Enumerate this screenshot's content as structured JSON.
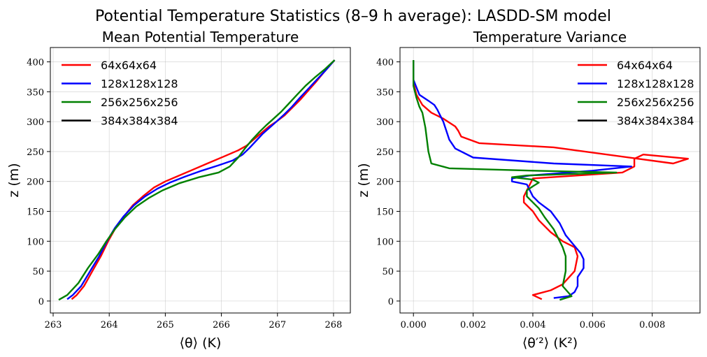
{
  "figure": {
    "suptitle": "Potential Temperature Statistics (8–9 h average): LASDD-SM model"
  },
  "chart_data": [
    {
      "type": "line",
      "title": "Mean Potential Temperature",
      "xlabel": "⟨θ⟩ (K)",
      "ylabel": "z (m)",
      "xlim": [
        262.95,
        268.3
      ],
      "ylim": [
        -20,
        424
      ],
      "xticks": [
        263,
        264,
        265,
        266,
        267,
        268
      ],
      "yticks": [
        0,
        50,
        100,
        150,
        200,
        250,
        300,
        350,
        400
      ],
      "grid": true,
      "legend_position": "upper-left",
      "series": [
        {
          "name": "64x64x64",
          "color": "#ff0000",
          "x": [
            263.33,
            263.42,
            263.55,
            263.7,
            263.85,
            263.98,
            264.1,
            264.25,
            264.42,
            264.6,
            264.8,
            265.0,
            265.2,
            265.45,
            265.75,
            266.05,
            266.3,
            266.45,
            266.55,
            266.65,
            266.75,
            266.85,
            266.98,
            267.12,
            267.25,
            267.4,
            267.55,
            267.7,
            267.85,
            268.02
          ],
          "y": [
            3,
            10,
            25,
            50,
            75,
            100,
            120,
            140,
            160,
            175,
            190,
            200,
            208,
            218,
            230,
            242,
            252,
            260,
            268,
            276,
            284,
            292,
            300,
            310,
            322,
            336,
            352,
            368,
            385,
            403
          ]
        },
        {
          "name": "128x128x128",
          "color": "#0000ff",
          "x": [
            263.25,
            263.35,
            263.5,
            263.66,
            263.82,
            263.96,
            264.1,
            264.26,
            264.44,
            264.64,
            264.86,
            265.08,
            265.35,
            265.65,
            265.95,
            266.2,
            266.38,
            266.5,
            266.62,
            266.74,
            266.86,
            266.98,
            267.12,
            267.26,
            267.4,
            267.55,
            267.7,
            267.85,
            268.02
          ],
          "y": [
            3,
            10,
            25,
            50,
            75,
            100,
            122,
            142,
            160,
            175,
            188,
            198,
            208,
            218,
            227,
            235,
            245,
            256,
            268,
            280,
            290,
            300,
            312,
            325,
            340,
            355,
            370,
            385,
            403
          ]
        },
        {
          "name": "256x256x256",
          "color": "#008000",
          "x": [
            263.1,
            263.25,
            263.45,
            263.62,
            263.8,
            263.95,
            264.1,
            264.28,
            264.48,
            264.7,
            264.95,
            265.25,
            265.6,
            265.95,
            266.15,
            266.3,
            266.42,
            266.55,
            266.68,
            266.8,
            266.92,
            267.06,
            267.2,
            267.35,
            267.5,
            267.68,
            267.85,
            268.02
          ],
          "y": [
            2,
            10,
            30,
            55,
            78,
            100,
            120,
            140,
            158,
            172,
            185,
            197,
            207,
            215,
            225,
            240,
            255,
            270,
            283,
            294,
            304,
            316,
            330,
            345,
            360,
            375,
            388,
            403
          ]
        },
        {
          "name": "384x384x384",
          "color": "#000000",
          "x": [],
          "y": []
        }
      ]
    },
    {
      "type": "line",
      "title": "Temperature Variance",
      "xlabel": "⟨θ′²⟩ (K²)",
      "ylabel": "z (m)",
      "xlim": [
        -0.00045,
        0.0096
      ],
      "ylim": [
        -20,
        424
      ],
      "xticks": [
        0,
        0.002,
        0.004,
        0.006,
        0.008
      ],
      "xtick_labels": [
        "0.000",
        "0.002",
        "0.004",
        "0.006",
        "0.008"
      ],
      "yticks": [
        0,
        50,
        100,
        150,
        200,
        250,
        300,
        350,
        400
      ],
      "grid": true,
      "legend_position": "upper-right",
      "series": [
        {
          "name": "64x64x64",
          "color": "#ff0000",
          "x": [
            0.0043,
            0.004,
            0.0046,
            0.005,
            0.0054,
            0.0055,
            0.0054,
            0.005,
            0.0046,
            0.0042,
            0.004,
            0.0037,
            0.0037,
            0.0038,
            0.0039,
            0.004,
            0.0055,
            0.007,
            0.0074,
            0.0074,
            0.0077,
            0.0092,
            0.0087,
            0.0047,
            0.0022,
            0.0016,
            0.0015,
            0.0014,
            0.001,
            0.0006,
            0.0003,
            0.0001,
            0.0,
            0.0,
            0.0
          ],
          "x_note": "",
          "y": [
            3,
            10,
            18,
            28,
            50,
            75,
            90,
            100,
            115,
            135,
            150,
            165,
            175,
            185,
            195,
            205,
            210,
            215,
            225,
            238,
            245,
            238,
            230,
            257,
            264,
            275,
            285,
            292,
            305,
            315,
            328,
            345,
            365,
            385,
            403
          ]
        },
        {
          "name": "128x128x128",
          "color": "#0000ff",
          "x": [
            0.0047,
            0.0052,
            0.0054,
            0.0055,
            0.0055,
            0.0057,
            0.0057,
            0.0056,
            0.0054,
            0.0051,
            0.0049,
            0.0046,
            0.0042,
            0.004,
            0.0039,
            0.0038,
            0.0033,
            0.0033,
            0.0039,
            0.006,
            0.0073,
            0.0047,
            0.002,
            0.0014,
            0.0012,
            0.0011,
            0.001,
            0.0009,
            0.0008,
            0.0007,
            0.0005,
            0.0002,
            0.0,
            0.0
          ],
          "y": [
            5,
            8,
            15,
            25,
            40,
            55,
            70,
            80,
            92,
            110,
            130,
            150,
            165,
            175,
            185,
            195,
            200,
            205,
            210,
            218,
            225,
            230,
            240,
            255,
            270,
            285,
            300,
            310,
            320,
            328,
            335,
            345,
            370,
            403
          ]
        },
        {
          "name": "256x256x256",
          "color": "#008000",
          "x": [
            0.0049,
            0.0053,
            0.005,
            0.0051,
            0.0051,
            0.005,
            0.0049,
            0.0047,
            0.0044,
            0.0042,
            0.004,
            0.0038,
            0.0038,
            0.004,
            0.0042,
            0.004,
            0.0033,
            0.0038,
            0.0068,
            0.004,
            0.0012,
            0.0006,
            0.0005,
            0.0004,
            0.0003,
            0.0002,
            0.0001,
            0.0,
            0.0
          ],
          "y": [
            2,
            8,
            25,
            50,
            75,
            90,
            100,
            120,
            140,
            155,
            165,
            175,
            185,
            192,
            198,
            203,
            207,
            210,
            215,
            218,
            222,
            230,
            250,
            290,
            315,
            325,
            340,
            360,
            403
          ]
        },
        {
          "name": "384x384x384",
          "color": "#000000",
          "x": [],
          "y": []
        }
      ]
    }
  ]
}
